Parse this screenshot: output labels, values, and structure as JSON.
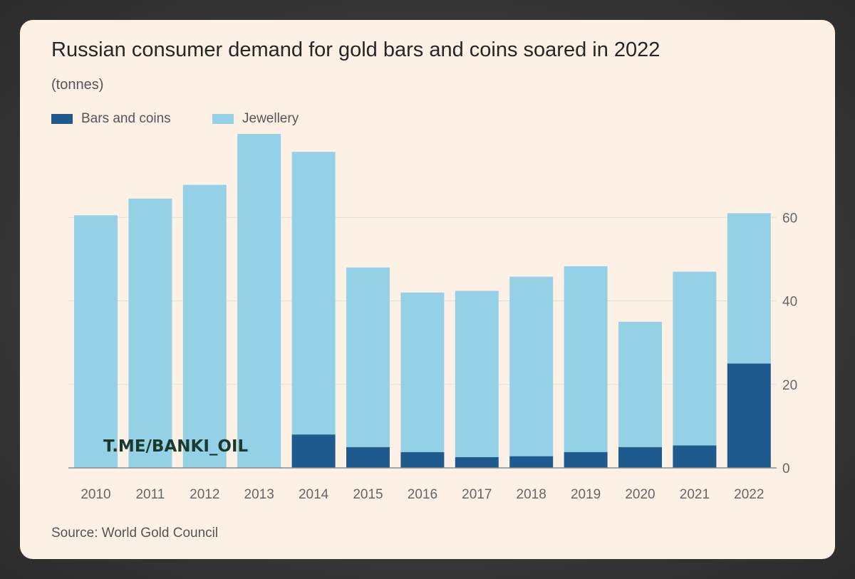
{
  "chart_data": {
    "type": "bar",
    "stacked": true,
    "title": "Russian consumer demand for gold bars and coins soared in 2022",
    "subtitle": "(tonnes)",
    "categories": [
      "2010",
      "2011",
      "2012",
      "2013",
      "2014",
      "2015",
      "2016",
      "2017",
      "2018",
      "2019",
      "2020",
      "2021",
      "2022"
    ],
    "series": [
      {
        "name": "Bars and coins",
        "color": "#1f5a8e",
        "values": [
          0,
          0,
          0,
          0,
          8,
          5,
          3.8,
          2.6,
          2.8,
          3.8,
          5,
          5.4,
          25
        ]
      },
      {
        "name": "Jewellery",
        "color": "#94d1e6",
        "values": [
          60.5,
          64.5,
          67.8,
          80,
          67.7,
          43,
          38.2,
          39.8,
          43,
          44.5,
          30,
          41.6,
          36
        ]
      }
    ],
    "ylim": [
      0,
      80
    ],
    "yticks": [
      "0",
      "20",
      "40",
      "60"
    ],
    "ytick_values": [
      0,
      20,
      40,
      60
    ],
    "y_axis_side": "right",
    "grid": true,
    "legend_position": "top-left",
    "source": "Source: World Gold Council",
    "watermark": "T.ME/BANKI_OIL"
  }
}
